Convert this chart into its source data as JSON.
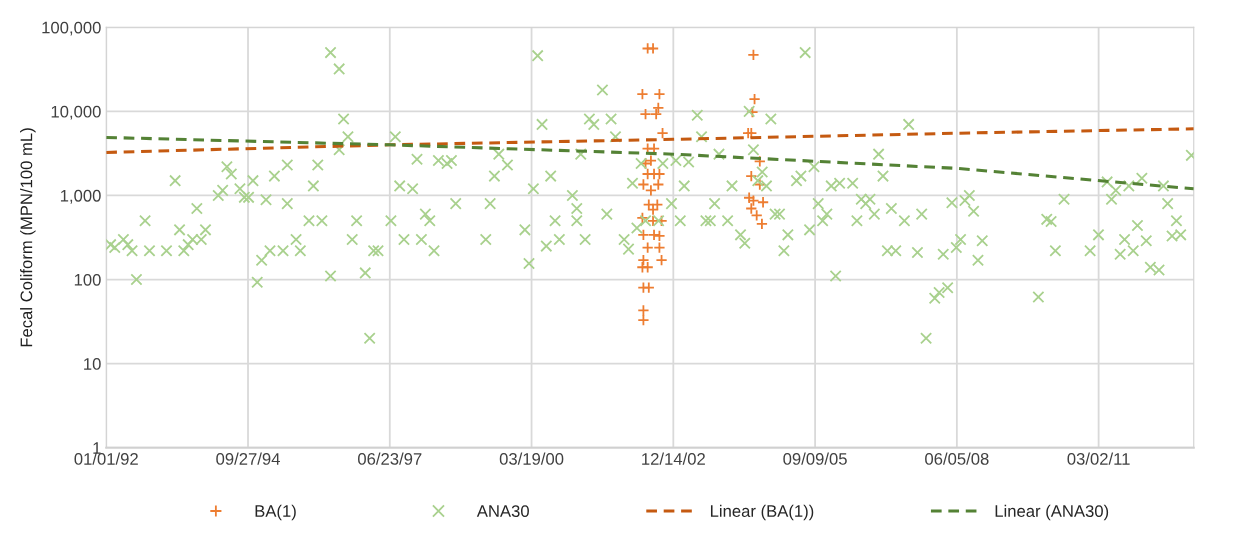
{
  "chart_data": {
    "type": "scatter",
    "ylabel": "Fecal Coliform (MPN/100 mL)",
    "log": "y",
    "grid": true,
    "legend": "bottom",
    "xlim": [
      "1992-01-01",
      "2013-01-01"
    ],
    "xticks": [
      {
        "value": "1992-01-01",
        "label": "01/01/92"
      },
      {
        "value": "1994-09-27",
        "label": "09/27/94"
      },
      {
        "value": "1997-06-23",
        "label": "06/23/97"
      },
      {
        "value": "2000-03-19",
        "label": "03/19/00"
      },
      {
        "value": "2002-12-14",
        "label": "12/14/02"
      },
      {
        "value": "2005-09-09",
        "label": "09/09/05"
      },
      {
        "value": "2008-06-05",
        "label": "06/05/08"
      },
      {
        "value": "2011-03-02",
        "label": "03/02/11"
      }
    ],
    "ylim": [
      1,
      100000
    ],
    "yticks": [
      {
        "value": 1,
        "label": "1"
      },
      {
        "value": 10,
        "label": "10"
      },
      {
        "value": 100,
        "label": "100"
      },
      {
        "value": 1000,
        "label": "1,000"
      },
      {
        "value": 10000,
        "label": "10,000"
      },
      {
        "value": 100000,
        "label": "100,000"
      }
    ],
    "series": [
      {
        "name": "BA(1)",
        "marker": "plus",
        "color": "#ed7d31",
        "x": [
          "2002-05-10",
          "2002-05-10",
          "2002-05-10",
          "2002-05-17",
          "2002-05-17",
          "2002-05-17",
          "2002-05-17",
          "2002-05-17",
          "2002-05-17",
          "2002-06-01",
          "2002-06-01",
          "2002-06-16",
          "2002-06-16",
          "2002-06-16",
          "2002-06-16",
          "2002-06-16",
          "2002-06-24",
          "2002-06-24",
          "2002-07-09",
          "2002-07-09",
          "2002-07-24",
          "2002-07-24",
          "2002-07-24",
          "2002-07-31",
          "2002-07-31",
          "2002-07-31",
          "2002-08-15",
          "2002-08-23",
          "2002-08-30",
          "2002-08-30",
          "2002-09-07",
          "2002-09-07",
          "2002-09-07",
          "2002-09-07",
          "2002-09-22",
          "2002-09-22",
          "2002-09-29",
          "2004-05-25",
          "2004-06-01",
          "2004-06-16",
          "2004-06-16",
          "2004-06-16",
          "2004-06-24",
          "2004-07-01",
          "2004-07-01",
          "2004-07-09",
          "2004-07-24",
          "2004-08-15",
          "2004-08-15",
          "2004-08-30",
          "2004-09-07"
        ],
        "values": [
          16000,
          540,
          140,
          1350,
          340,
          170,
          80,
          43,
          33,
          9300,
          2400,
          56000,
          3600,
          1800,
          240,
          140,
          780,
          80,
          2600,
          1150,
          56000,
          680,
          500,
          3600,
          1800,
          340,
          9300,
          780,
          11000,
          1350,
          16000,
          1800,
          330,
          240,
          500,
          170,
          5500,
          5500,
          940,
          5500,
          1700,
          700,
          9800,
          47000,
          870,
          14000,
          580,
          2550,
          1350,
          460,
          830
        ]
      },
      {
        "name": "ANA30",
        "marker": "cross",
        "color": "#a9d18e",
        "x": [
          "1992-02",
          "1992-03",
          "1992-05",
          "1992-06",
          "1992-07",
          "1992-08",
          "1992-10",
          "1992-11",
          "1993-03",
          "1993-05",
          "1993-06",
          "1993-07",
          "1993-08",
          "1993-09",
          "1993-10",
          "1993-11",
          "1993-12",
          "1994-03",
          "1994-04",
          "1994-05",
          "1994-06",
          "1994-08",
          "1994-09",
          "1994-10",
          "1994-11",
          "1994-12",
          "1995-01",
          "1995-02",
          "1995-03",
          "1995-04",
          "1995-06",
          "1995-07",
          "1995-07",
          "1995-09",
          "1995-10",
          "1995-12",
          "1996-01",
          "1996-02",
          "1996-03",
          "1996-05",
          "1996-05",
          "1996-07",
          "1996-07",
          "1996-08",
          "1996-09",
          "1996-10",
          "1996-11",
          "1997-01",
          "1997-02",
          "1997-03",
          "1997-04",
          "1997-07",
          "1997-08",
          "1997-09",
          "1997-10",
          "1997-12",
          "1998-01",
          "1998-02",
          "1998-03",
          "1998-04",
          "1998-05",
          "1998-06",
          "1998-08",
          "1998-09",
          "1998-10",
          "1999-05",
          "1999-06",
          "1999-07",
          "1999-08",
          "1999-10",
          "2000-02",
          "2000-03",
          "2000-04",
          "2000-05",
          "2000-06",
          "2000-07",
          "2000-08",
          "2000-09",
          "2000-10",
          "2001-01",
          "2001-02",
          "2001-02",
          "2001-03",
          "2001-04",
          "2001-05",
          "2001-06",
          "2001-08",
          "2001-09",
          "2001-10",
          "2001-11",
          "2002-01",
          "2002-02",
          "2002-03",
          "2002-04",
          "2002-05",
          "2002-06",
          "2002-09",
          "2002-10",
          "2003-01",
          "2002-12",
          "2003-02",
          "2003-03",
          "2003-04",
          "2003-06",
          "2003-07",
          "2003-08",
          "2003-09",
          "2003-10",
          "2003-11",
          "2004-01",
          "2004-02",
          "2004-04",
          "2004-05",
          "2004-06",
          "2004-07",
          "2004-08",
          "2004-09",
          "2004-10",
          "2004-11",
          "2004-12",
          "2005-01",
          "2005-02",
          "2005-03",
          "2005-05",
          "2005-06",
          "2005-07",
          "2005-08",
          "2005-09",
          "2005-10",
          "2005-11",
          "2005-12",
          "2006-01",
          "2006-02",
          "2006-03",
          "2006-06",
          "2006-07",
          "2006-08",
          "2006-09",
          "2006-10",
          "2006-11",
          "2006-12",
          "2007-01",
          "2007-02",
          "2007-03",
          "2007-04",
          "2007-06",
          "2007-07",
          "2007-09",
          "2007-10",
          "2007-11",
          "2008-01",
          "2008-02",
          "2008-03",
          "2008-04",
          "2008-05",
          "2008-06",
          "2008-07",
          "2008-08",
          "2008-09",
          "2008-10",
          "2008-11",
          "2008-12",
          "2010-01",
          "2010-03",
          "2010-04",
          "2010-05",
          "2010-07",
          "2011-01",
          "2011-03",
          "2011-05",
          "2011-06",
          "2011-07",
          "2011-08",
          "2011-09",
          "2011-10",
          "2011-11",
          "2011-12",
          "2012-01",
          "2012-02",
          "2012-03",
          "2012-05",
          "2012-06",
          "2012-07",
          "2012-08",
          "2012-09",
          "2012-10",
          "2012-12-15"
        ],
        "values": [
          260,
          240,
          300,
          260,
          220,
          100,
          500,
          220,
          220,
          1500,
          390,
          220,
          260,
          300,
          700,
          300,
          390,
          1000,
          1150,
          2200,
          1800,
          1200,
          950,
          950,
          1500,
          93,
          170,
          890,
          220,
          1700,
          220,
          2300,
          800,
          300,
          220,
          500,
          1300,
          2300,
          500,
          110,
          50000,
          32000,
          3500,
          8100,
          5000,
          300,
          500,
          120,
          20,
          220,
          220,
          500,
          5000,
          1300,
          300,
          1200,
          2700,
          300,
          600,
          500,
          220,
          2600,
          2400,
          2600,
          800,
          300,
          800,
          1700,
          3100,
          2300,
          390,
          155,
          1200,
          46000,
          7000,
          250,
          1700,
          500,
          300,
          1000,
          700,
          500,
          3100,
          300,
          8100,
          7000,
          18000,
          600,
          8100,
          5000,
          300,
          230,
          1400,
          410,
          2400,
          500,
          500,
          2400,
          2600,
          800,
          500,
          1300,
          2500,
          9000,
          5000,
          500,
          500,
          800,
          3100,
          500,
          1300,
          340,
          270,
          10000,
          3500,
          1500,
          1900,
          1300,
          8100,
          600,
          600,
          220,
          340,
          1500,
          1700,
          50000,
          390,
          2200,
          800,
          500,
          600,
          1300,
          110,
          1400,
          1400,
          500,
          900,
          800,
          900,
          600,
          3100,
          1700,
          220,
          700,
          220,
          500,
          7000,
          210,
          600,
          20,
          60,
          70,
          200,
          80,
          820,
          240,
          300,
          870,
          1000,
          650,
          170,
          290,
          62,
          520,
          490,
          220,
          900,
          220,
          340,
          1450,
          900,
          1150,
          200,
          300,
          1300,
          220,
          440,
          1600,
          290,
          140,
          130,
          1300,
          800,
          330,
          500,
          340,
          3000
        ]
      },
      {
        "name": "Linear (BA(1))",
        "type": "line",
        "line_style": "dashed",
        "color": "#c55a11",
        "x": [
          "1992-01-01",
          "1997-06-23",
          "2002-12-14",
          "2008-06-05",
          "2013-01-01"
        ],
        "values": [
          3250,
          4000,
          4650,
          5500,
          6200
        ]
      },
      {
        "name": "Linear (ANA30)",
        "type": "line",
        "line_style": "dashed",
        "color": "#548235",
        "x": [
          "1992-01-01",
          "1997-06-23",
          "2002-12-14",
          "2008-06-05",
          "2013-01-01"
        ],
        "values": [
          4900,
          4000,
          3100,
          2100,
          1200
        ]
      }
    ]
  }
}
